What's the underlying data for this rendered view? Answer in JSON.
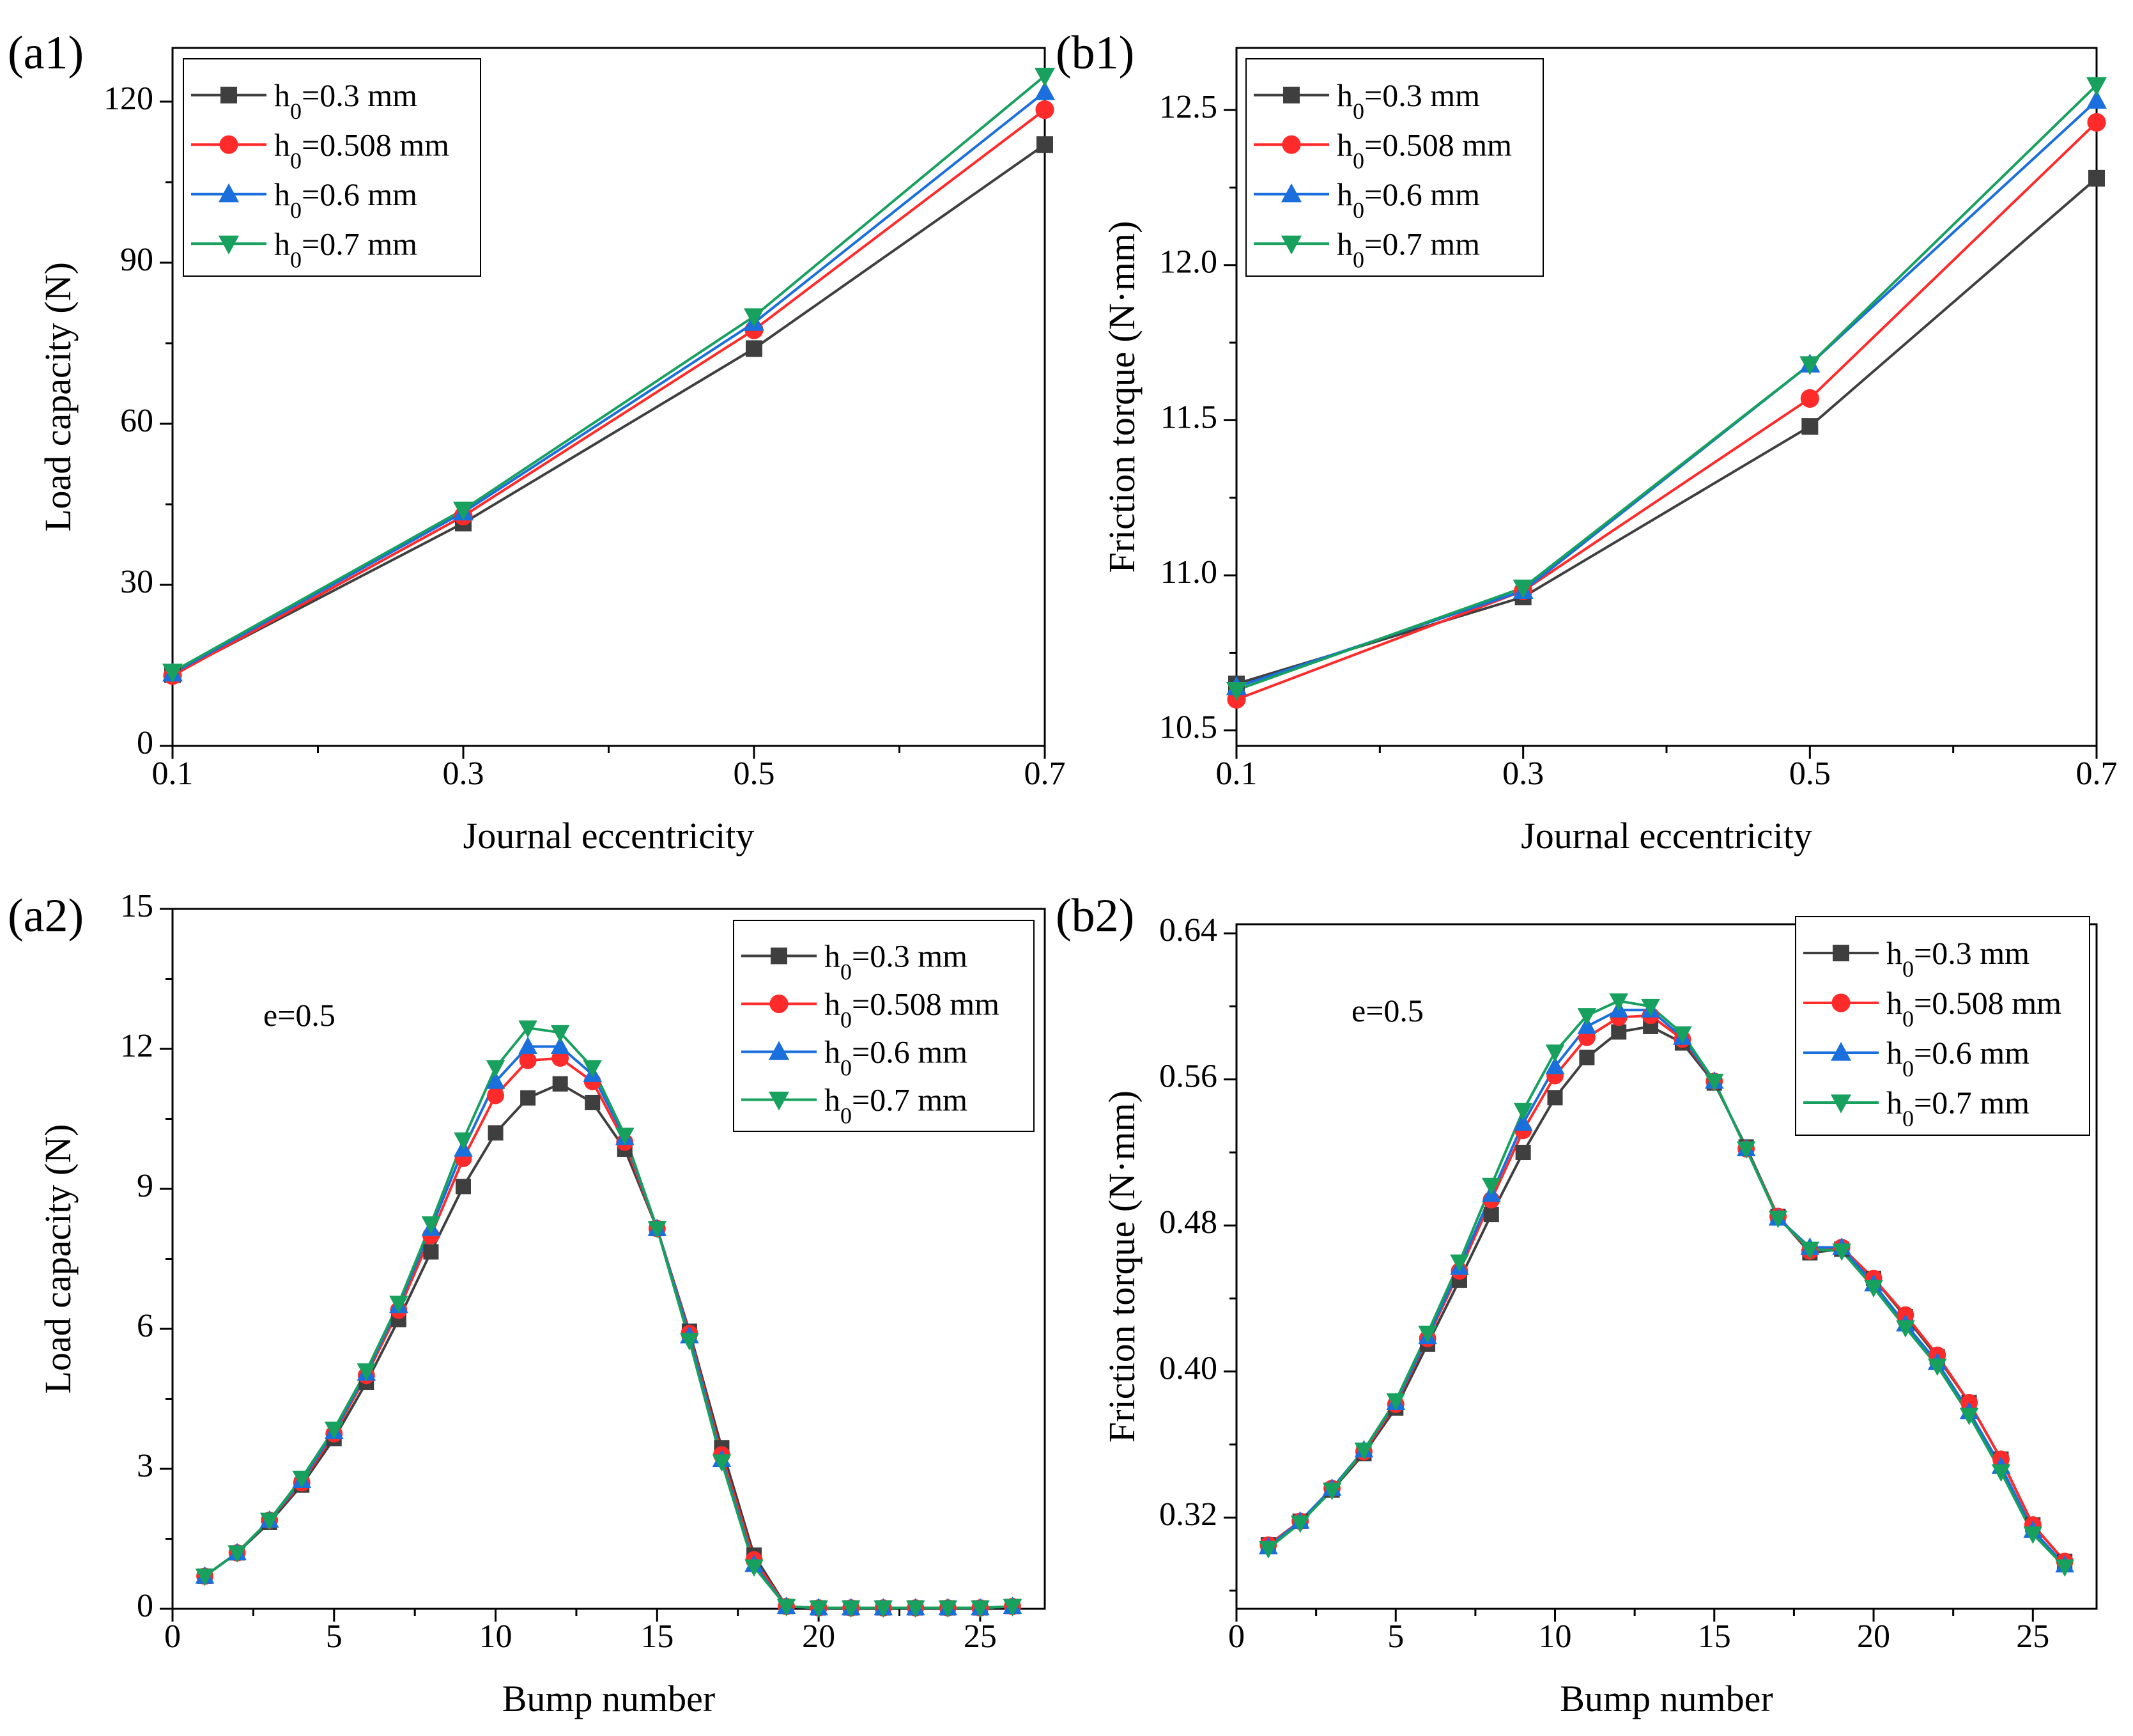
{
  "legend_entries": [
    "h₀=0.3 mm",
    "h₀=0.508 mm",
    "h₀=0.6 mm",
    "h₀=0.7 mm"
  ],
  "series_colors": [
    "#3f3f3f",
    "#ff2a2a",
    "#1a6fdc",
    "#17a05e"
  ],
  "series_markers": [
    "square",
    "circle",
    "triangle-up",
    "triangle-down"
  ],
  "chart_data": [
    {
      "panel": "(a1)",
      "type": "line",
      "xlabel": "Journal eccentricity",
      "ylabel": "Load capacity (N)",
      "xlim": [
        0.1,
        0.7
      ],
      "ylim": [
        0,
        130
      ],
      "xticks": [
        0.1,
        0.3,
        0.5,
        0.7
      ],
      "xtick_labels": [
        "0.1",
        "0.3",
        "0.5",
        "0.7"
      ],
      "yticks": [
        0,
        30,
        60,
        90,
        120
      ],
      "ytick_labels": [
        "0",
        "30",
        "60",
        "90",
        "120"
      ],
      "x": [
        0.1,
        0.3,
        0.5,
        0.7
      ],
      "series": [
        {
          "name": "h₀=0.3 mm",
          "values": [
            13.3,
            41.5,
            74,
            112
          ]
        },
        {
          "name": "h₀=0.508 mm",
          "values": [
            13.1,
            42.8,
            77.5,
            118.5
          ]
        },
        {
          "name": "h₀=0.6 mm",
          "values": [
            13.5,
            43.5,
            78.8,
            121.8
          ]
        },
        {
          "name": "h₀=0.7 mm",
          "values": [
            13.8,
            44,
            80,
            124.8
          ]
        }
      ],
      "legend_position": "top-left"
    },
    {
      "panel": "(b1)",
      "type": "line",
      "xlabel": "Journal eccentricity",
      "ylabel": "Friction torque (N·mm)",
      "xlim": [
        0.1,
        0.7
      ],
      "ylim": [
        10.45,
        12.7
      ],
      "xticks": [
        0.1,
        0.3,
        0.5,
        0.7
      ],
      "xtick_labels": [
        "0.1",
        "0.3",
        "0.5",
        "0.7"
      ],
      "yticks": [
        10.5,
        11.0,
        11.5,
        12.0,
        12.5
      ],
      "ytick_labels": [
        "10.5",
        "11.0",
        "11.5",
        "12.0",
        "12.5"
      ],
      "x": [
        0.1,
        0.3,
        0.5,
        0.7
      ],
      "series": [
        {
          "name": "h₀=0.3 mm",
          "values": [
            10.65,
            10.93,
            11.48,
            12.28
          ]
        },
        {
          "name": "h₀=0.508 mm",
          "values": [
            10.6,
            10.95,
            11.57,
            12.46
          ]
        },
        {
          "name": "h₀=0.6 mm",
          "values": [
            10.64,
            10.95,
            11.68,
            12.53
          ]
        },
        {
          "name": "h₀=0.7 mm",
          "values": [
            10.63,
            10.96,
            11.68,
            12.58
          ]
        }
      ],
      "legend_position": "top-left"
    },
    {
      "panel": "(a2)",
      "type": "line",
      "xlabel": "Bump number",
      "ylabel": "Load capacity (N)",
      "annotation": "e=0.5",
      "xlim": [
        0,
        27
      ],
      "ylim": [
        0,
        15
      ],
      "xticks": [
        0,
        5,
        10,
        15,
        20,
        25
      ],
      "xtick_labels": [
        "0",
        "5",
        "10",
        "15",
        "20",
        "25"
      ],
      "yticks": [
        0,
        3,
        6,
        9,
        12,
        15
      ],
      "ytick_labels": [
        "0",
        "3",
        "6",
        "9",
        "12",
        "15"
      ],
      "x": [
        1,
        2,
        3,
        4,
        5,
        6,
        7,
        8,
        9,
        10,
        11,
        12,
        13,
        14,
        15,
        16,
        17,
        18,
        19,
        20,
        21,
        22,
        23,
        24,
        25,
        26
      ],
      "series": [
        {
          "name": "h₀=0.3 mm",
          "values": [
            0.7,
            1.2,
            1.85,
            2.65,
            3.65,
            4.85,
            6.2,
            7.65,
            9.05,
            10.2,
            10.95,
            11.25,
            10.85,
            9.85,
            8.15,
            5.95,
            3.45,
            1.15,
            0.05,
            0.02,
            0.02,
            0.02,
            0.02,
            0.02,
            0.02,
            0.05
          ]
        },
        {
          "name": "h₀=0.508 mm",
          "values": [
            0.7,
            1.2,
            1.9,
            2.7,
            3.75,
            5.0,
            6.4,
            8.0,
            9.65,
            11.0,
            11.75,
            11.8,
            11.3,
            10.0,
            8.15,
            5.9,
            3.3,
            1.05,
            0.05,
            0.02,
            0.02,
            0.02,
            0.02,
            0.02,
            0.02,
            0.05
          ]
        },
        {
          "name": "h₀=0.6 mm",
          "values": [
            0.7,
            1.2,
            1.9,
            2.75,
            3.8,
            5.05,
            6.5,
            8.15,
            9.85,
            11.3,
            12.05,
            12.05,
            11.45,
            10.1,
            8.15,
            5.85,
            3.2,
            0.95,
            0.05,
            0.02,
            0.02,
            0.02,
            0.02,
            0.02,
            0.02,
            0.05
          ]
        },
        {
          "name": "h₀=0.7 mm",
          "values": [
            0.7,
            1.2,
            1.9,
            2.8,
            3.85,
            5.1,
            6.55,
            8.25,
            10.05,
            11.6,
            12.45,
            12.35,
            11.6,
            10.15,
            8.15,
            5.75,
            3.15,
            0.9,
            0.05,
            0.02,
            0.02,
            0.02,
            0.02,
            0.02,
            0.02,
            0.05
          ]
        }
      ],
      "legend_position": "top-right"
    },
    {
      "panel": "(b2)",
      "type": "line",
      "xlabel": "Bump number",
      "ylabel": "Friction torque (N·mm)",
      "annotation": "e=0.5",
      "xlim": [
        0,
        27
      ],
      "ylim": [
        0.27,
        0.645
      ],
      "xticks": [
        0,
        5,
        10,
        15,
        20,
        25
      ],
      "xtick_labels": [
        "0",
        "5",
        "10",
        "15",
        "20",
        "25"
      ],
      "yticks": [
        0.32,
        0.4,
        0.48,
        0.56,
        0.64
      ],
      "ytick_labels": [
        "0.32",
        "0.40",
        "0.48",
        "0.56",
        "0.64"
      ],
      "x": [
        1,
        2,
        3,
        4,
        5,
        6,
        7,
        8,
        9,
        10,
        11,
        12,
        13,
        14,
        15,
        16,
        17,
        18,
        19,
        20,
        21,
        22,
        23,
        24,
        25,
        26
      ],
      "series": [
        {
          "name": "h₀=0.3 mm",
          "values": [
            0.305,
            0.318,
            0.335,
            0.355,
            0.38,
            0.415,
            0.45,
            0.486,
            0.52,
            0.55,
            0.572,
            0.586,
            0.589,
            0.58,
            0.558,
            0.523,
            0.485,
            0.465,
            0.467,
            0.451,
            0.43,
            0.408,
            0.383,
            0.352,
            0.316,
            0.296
          ]
        },
        {
          "name": "h₀=0.508 mm",
          "values": [
            0.305,
            0.318,
            0.336,
            0.356,
            0.382,
            0.418,
            0.455,
            0.494,
            0.532,
            0.562,
            0.583,
            0.594,
            0.595,
            0.582,
            0.559,
            0.522,
            0.485,
            0.466,
            0.468,
            0.451,
            0.431,
            0.409,
            0.383,
            0.352,
            0.316,
            0.296
          ]
        },
        {
          "name": "h₀=0.6 mm",
          "values": [
            0.304,
            0.318,
            0.336,
            0.357,
            0.383,
            0.419,
            0.457,
            0.497,
            0.536,
            0.567,
            0.589,
            0.598,
            0.598,
            0.583,
            0.559,
            0.522,
            0.484,
            0.468,
            0.468,
            0.448,
            0.426,
            0.405,
            0.378,
            0.348,
            0.313,
            0.294
          ]
        },
        {
          "name": "h₀=0.7 mm",
          "values": [
            0.303,
            0.317,
            0.335,
            0.357,
            0.384,
            0.421,
            0.46,
            0.502,
            0.543,
            0.575,
            0.595,
            0.603,
            0.6,
            0.585,
            0.559,
            0.522,
            0.484,
            0.467,
            0.466,
            0.446,
            0.424,
            0.403,
            0.376,
            0.345,
            0.311,
            0.293
          ]
        }
      ],
      "legend_position": "top-right"
    }
  ]
}
